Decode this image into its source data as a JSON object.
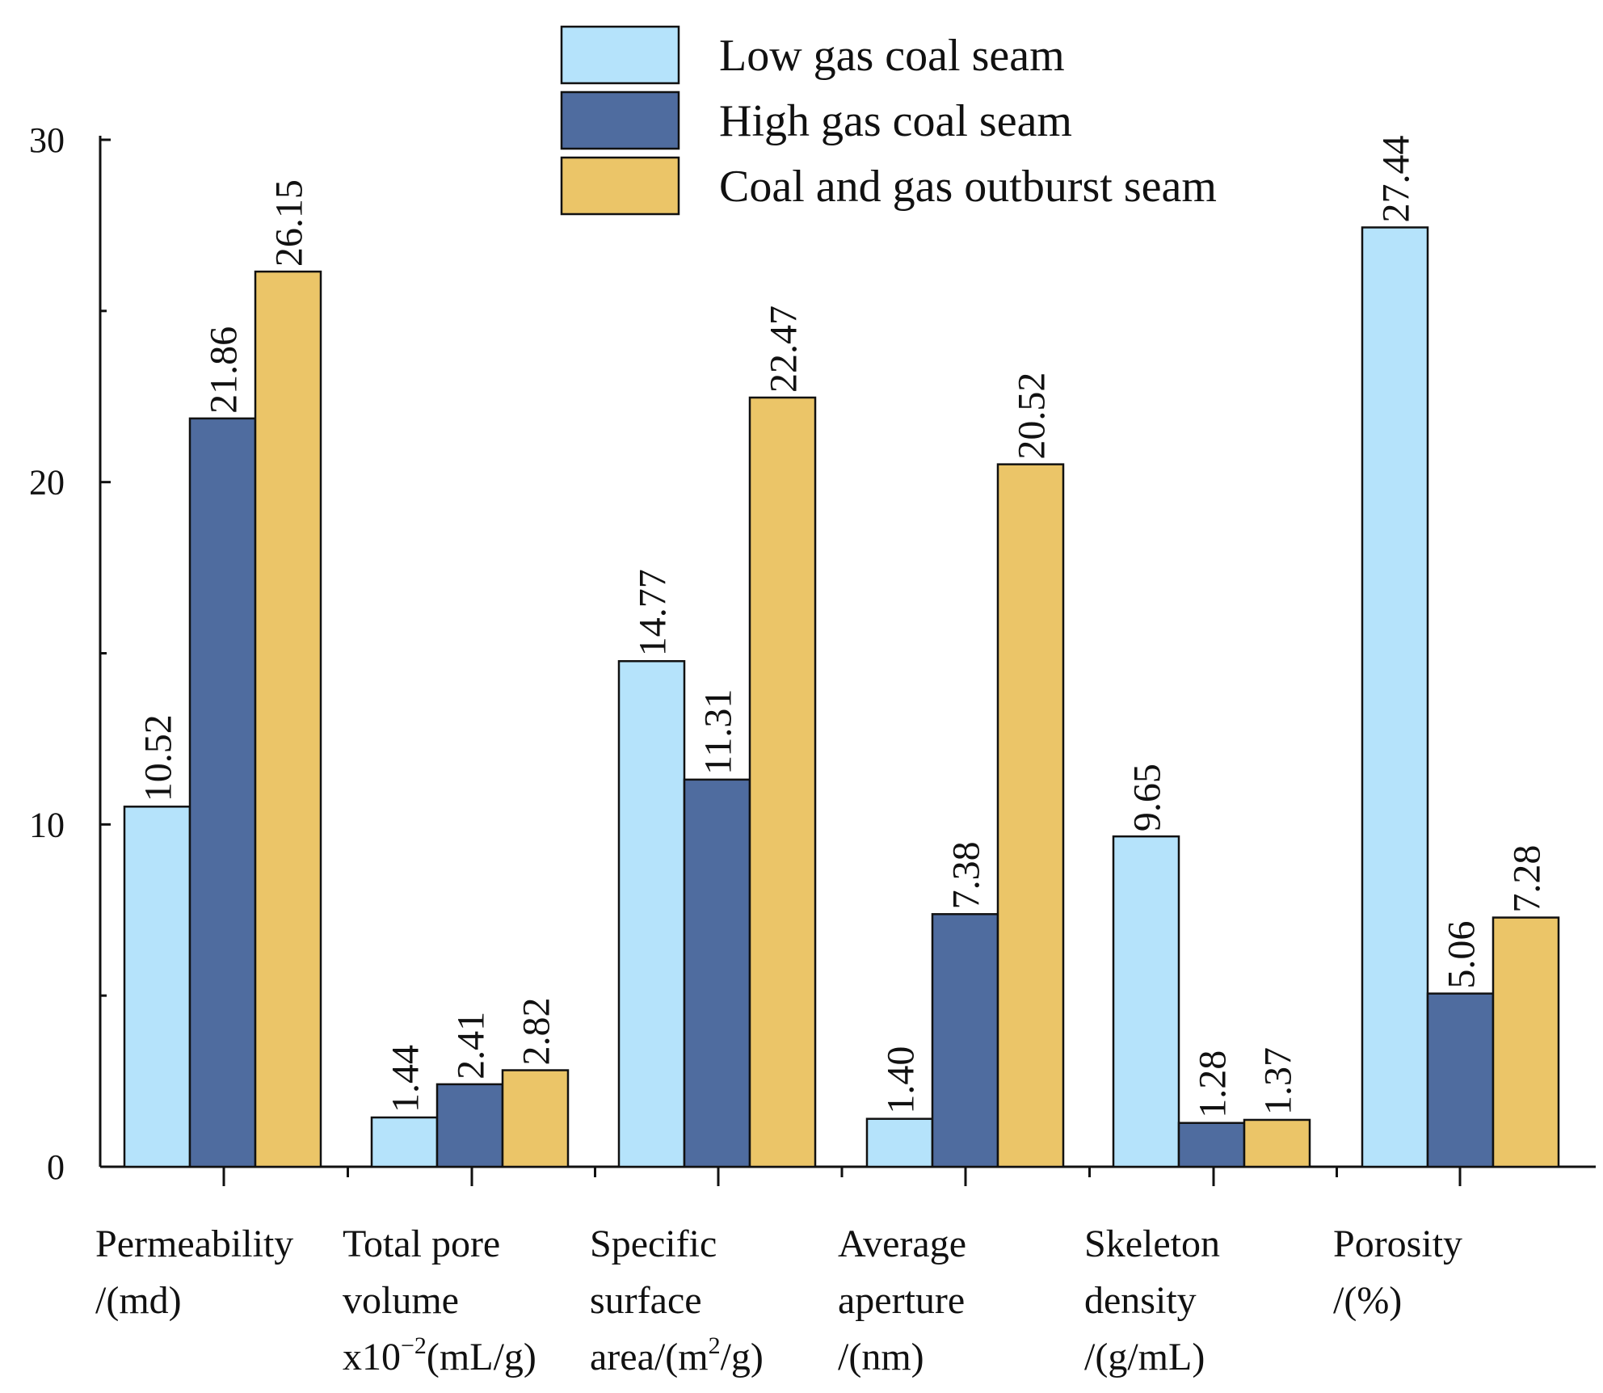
{
  "chart_data": {
    "type": "bar",
    "title": "",
    "xlabel": "",
    "ylabel": "",
    "ylim": [
      0,
      30
    ],
    "yticks": [
      0,
      10,
      20,
      30
    ],
    "minor_yticks": [
      5,
      15,
      25
    ],
    "grid": false,
    "legend_position": "top",
    "categories": [
      {
        "lines": [
          [
            {
              "t": "Permeability"
            }
          ],
          [
            {
              "t": "/(md)"
            }
          ]
        ]
      },
      {
        "lines": [
          [
            {
              "t": "Total pore"
            }
          ],
          [
            {
              "t": "volume"
            }
          ],
          [
            {
              "t": "x10"
            },
            {
              "t": "−2",
              "sup": true
            },
            {
              "t": "(mL/g)"
            }
          ]
        ]
      },
      {
        "lines": [
          [
            {
              "t": "Specific"
            }
          ],
          [
            {
              "t": "surface"
            }
          ],
          [
            {
              "t": "area/(m"
            },
            {
              "t": "2",
              "sup": true
            },
            {
              "t": "/g)"
            }
          ]
        ]
      },
      {
        "lines": [
          [
            {
              "t": "Average"
            }
          ],
          [
            {
              "t": "aperture"
            }
          ],
          [
            {
              "t": "/(nm)"
            }
          ]
        ]
      },
      {
        "lines": [
          [
            {
              "t": "Skeleton"
            }
          ],
          [
            {
              "t": "density"
            }
          ],
          [
            {
              "t": "/(g/mL)"
            }
          ]
        ]
      },
      {
        "lines": [
          [
            {
              "t": "Porosity"
            }
          ],
          [
            {
              "t": "/(%)"
            }
          ]
        ]
      }
    ],
    "series": [
      {
        "name": "Low gas coal seam",
        "color": "#b5e3fb",
        "values": [
          10.52,
          1.44,
          14.77,
          1.4,
          9.65,
          27.44
        ],
        "labels": [
          "10.52",
          "1.44",
          "14.77",
          "1.40",
          "9.65",
          "27.44"
        ]
      },
      {
        "name": "High gas coal seam",
        "color": "#4f6c9f",
        "values": [
          21.86,
          2.41,
          11.31,
          7.38,
          1.28,
          5.06
        ],
        "labels": [
          "21.86",
          "2.41",
          "11.31",
          "7.38",
          "1.28",
          "5.06"
        ]
      },
      {
        "name": "Coal and gas outburst seam",
        "color": "#ebc568",
        "values": [
          26.15,
          2.82,
          22.47,
          20.52,
          1.37,
          7.28
        ],
        "labels": [
          "26.15",
          "2.82",
          "22.47",
          "20.52",
          "1.37",
          "7.28"
        ]
      }
    ]
  }
}
